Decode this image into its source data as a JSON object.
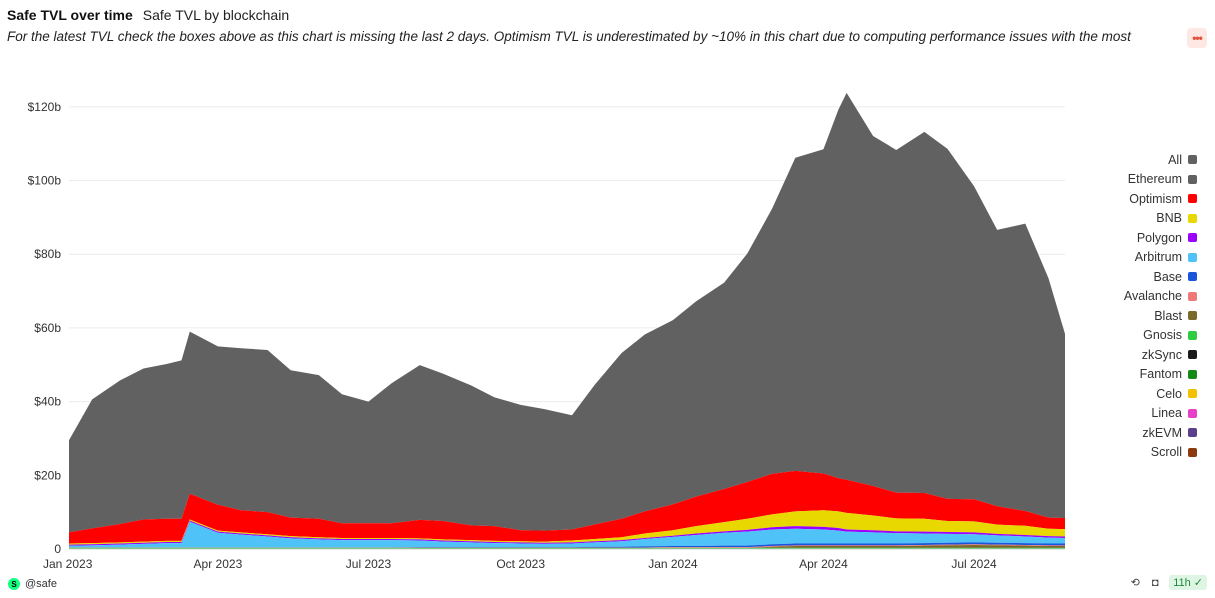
{
  "header": {
    "title": "Safe TVL over time",
    "tab": "Safe TVL by blockchain",
    "description": "For the latest TVL check the boxes above as this chart is missing the last 2 days. Optimism TVL is underestimated by ~10% in this chart due to computing performance issues with the most"
  },
  "footer": {
    "handle": "@safe",
    "age": "11h"
  },
  "icons": {
    "more": "more-dots-icon",
    "refresh": "refresh-icon",
    "camera": "camera-icon",
    "check": "check-circle-icon"
  },
  "chart_data": {
    "type": "area",
    "title": "",
    "xlabel": "",
    "ylabel": "",
    "ylim": [
      0,
      130
    ],
    "y_unit": "billions USD",
    "xlim": [
      "2023-01-01",
      "2024-08-25"
    ],
    "y_ticks": [
      "0",
      "$20b",
      "$40b",
      "$60b",
      "$80b",
      "$100b",
      "$120b"
    ],
    "x_ticks": [
      "Jan 2023",
      "Apr 2023",
      "Jul 2023",
      "Oct 2023",
      "Jan 2024",
      "Apr 2024",
      "Jul 2024"
    ],
    "grid": true,
    "legend_position": "right",
    "legend": [
      {
        "name": "All",
        "color": "#616161"
      },
      {
        "name": "Ethereum",
        "color": "#616161"
      },
      {
        "name": "Optimism",
        "color": "#ff0000"
      },
      {
        "name": "BNB",
        "color": "#e8d800"
      },
      {
        "name": "Polygon",
        "color": "#9b00ff"
      },
      {
        "name": "Arbitrum",
        "color": "#4fc3f7"
      },
      {
        "name": "Base",
        "color": "#1a56db"
      },
      {
        "name": "Avalanche",
        "color": "#f07878"
      },
      {
        "name": "Blast",
        "color": "#7a6a2a"
      },
      {
        "name": "Gnosis",
        "color": "#2ecc40"
      },
      {
        "name": "zkSync",
        "color": "#1a1a1a"
      },
      {
        "name": "Fantom",
        "color": "#138a13"
      },
      {
        "name": "Celo",
        "color": "#f2c200"
      },
      {
        "name": "Linea",
        "color": "#e83fc8"
      },
      {
        "name": "zkEVM",
        "color": "#5a3f8c"
      },
      {
        "name": "Scroll",
        "color": "#8b3a0f"
      }
    ],
    "dates": [
      "2023-01-01",
      "2023-01-15",
      "2023-02-01",
      "2023-02-15",
      "2023-03-01",
      "2023-03-10",
      "2023-03-15",
      "2023-04-01",
      "2023-04-15",
      "2023-05-01",
      "2023-05-15",
      "2023-06-01",
      "2023-06-15",
      "2023-07-01",
      "2023-07-15",
      "2023-08-01",
      "2023-08-15",
      "2023-09-01",
      "2023-09-15",
      "2023-10-01",
      "2023-10-15",
      "2023-11-01",
      "2023-11-15",
      "2023-12-01",
      "2023-12-15",
      "2024-01-01",
      "2024-01-15",
      "2024-02-01",
      "2024-02-15",
      "2024-03-01",
      "2024-03-15",
      "2024-04-01",
      "2024-04-10",
      "2024-04-15",
      "2024-05-01",
      "2024-05-15",
      "2024-06-01",
      "2024-06-15",
      "2024-07-01",
      "2024-07-15",
      "2024-08-01",
      "2024-08-15",
      "2024-08-25"
    ],
    "series": [
      {
        "name": "Ethereum",
        "color": "#616161",
        "values": [
          25,
          35,
          39,
          41,
          42,
          43,
          44,
          43,
          44,
          44,
          40,
          39,
          35,
          33,
          38,
          42,
          40,
          38,
          35,
          34,
          33,
          31,
          38,
          45,
          48,
          50,
          53,
          56,
          62,
          72,
          85,
          88,
          100,
          105,
          95,
          93,
          98,
          95,
          85,
          75,
          78,
          65,
          50
        ]
      },
      {
        "name": "Optimism",
        "color": "#ff0000",
        "values": [
          3,
          4,
          5,
          6,
          6,
          6,
          7,
          7,
          6,
          6,
          5,
          5,
          4,
          4,
          4,
          5,
          5,
          4,
          4,
          3,
          3,
          3,
          4,
          5,
          6,
          7,
          8,
          9,
          10,
          11,
          11,
          10,
          9,
          9,
          8,
          7,
          7,
          6,
          6,
          5,
          4,
          3,
          3
        ]
      },
      {
        "name": "BNB",
        "color": "#e8d800",
        "values": [
          0.3,
          0.3,
          0.3,
          0.3,
          0.3,
          0.3,
          0.3,
          0.3,
          0.3,
          0.3,
          0.3,
          0.3,
          0.3,
          0.3,
          0.3,
          0.3,
          0.3,
          0.3,
          0.3,
          0.3,
          0.3,
          0.5,
          0.6,
          0.8,
          1.2,
          1.5,
          2,
          2.5,
          3,
          3.5,
          4,
          4.5,
          4.5,
          4.5,
          4,
          3.5,
          3.5,
          3,
          3,
          2.5,
          2.5,
          2,
          2
        ]
      },
      {
        "name": "Polygon",
        "color": "#9b00ff",
        "values": [
          0.3,
          0.3,
          0.3,
          0.3,
          0.3,
          0.3,
          0.3,
          0.3,
          0.3,
          0.3,
          0.3,
          0.3,
          0.3,
          0.3,
          0.3,
          0.3,
          0.3,
          0.3,
          0.3,
          0.3,
          0.3,
          0.3,
          0.3,
          0.3,
          0.3,
          0.3,
          0.4,
          0.4,
          0.5,
          0.6,
          0.7,
          0.7,
          0.7,
          0.6,
          0.6,
          0.5,
          0.5,
          0.5,
          0.5,
          0.4,
          0.4,
          0.4,
          0.4
        ]
      },
      {
        "name": "Arbitrum",
        "color": "#4fc3f7",
        "values": [
          0.5,
          0.6,
          0.8,
          1,
          1.2,
          1.2,
          7,
          4,
          3.5,
          3,
          2.5,
          2.2,
          2,
          2,
          2,
          1.8,
          1.5,
          1.3,
          1.1,
          1,
          0.9,
          1,
          1.2,
          1.5,
          2,
          2.5,
          3,
          3.5,
          3.8,
          4,
          4,
          3.8,
          3.5,
          3.2,
          3,
          2.8,
          2.6,
          2.4,
          2.2,
          2,
          1.8,
          1.6,
          1.5
        ]
      },
      {
        "name": "Base",
        "color": "#1a56db",
        "values": [
          0,
          0,
          0,
          0,
          0,
          0,
          0,
          0,
          0,
          0,
          0,
          0,
          0,
          0,
          0,
          0.1,
          0.1,
          0.1,
          0.1,
          0.1,
          0.1,
          0.1,
          0.2,
          0.2,
          0.3,
          0.3,
          0.3,
          0.4,
          0.4,
          0.5,
          0.5,
          0.5,
          0.5,
          0.5,
          0.5,
          0.5,
          0.5,
          0.5,
          0.5,
          0.5,
          0.5,
          0.5,
          0.5
        ]
      },
      {
        "name": "Avalanche",
        "color": "#f07878",
        "values": [
          0.1,
          0.1,
          0.1,
          0.1,
          0.1,
          0.1,
          0.1,
          0.1,
          0.1,
          0.1,
          0.1,
          0.1,
          0.1,
          0.1,
          0.1,
          0.1,
          0.1,
          0.1,
          0.1,
          0.1,
          0.1,
          0.1,
          0.1,
          0.1,
          0.1,
          0.2,
          0.2,
          0.2,
          0.2,
          0.2,
          0.2,
          0.2,
          0.2,
          0.2,
          0.2,
          0.2,
          0.2,
          0.2,
          0.2,
          0.2,
          0.2,
          0.2,
          0.2
        ]
      },
      {
        "name": "Blast",
        "color": "#7a6a2a",
        "values": [
          0,
          0,
          0,
          0,
          0,
          0,
          0,
          0,
          0,
          0,
          0,
          0,
          0,
          0,
          0,
          0,
          0,
          0,
          0,
          0,
          0,
          0,
          0,
          0,
          0,
          0,
          0,
          0,
          0,
          0.3,
          0.5,
          0.5,
          0.5,
          0.5,
          0.5,
          0.5,
          0.6,
          0.7,
          0.8,
          0.7,
          0.6,
          0.5,
          0.5
        ]
      },
      {
        "name": "Gnosis",
        "color": "#2ecc40",
        "values": [
          0.2,
          0.2,
          0.2,
          0.2,
          0.2,
          0.2,
          0.2,
          0.2,
          0.2,
          0.2,
          0.2,
          0.2,
          0.2,
          0.2,
          0.2,
          0.2,
          0.2,
          0.2,
          0.2,
          0.2,
          0.2,
          0.2,
          0.2,
          0.2,
          0.2,
          0.2,
          0.2,
          0.2,
          0.2,
          0.2,
          0.2,
          0.2,
          0.2,
          0.2,
          0.2,
          0.2,
          0.2,
          0.2,
          0.2,
          0.2,
          0.2,
          0.2,
          0.2
        ]
      },
      {
        "name": "zkSync",
        "color": "#1a1a1a",
        "values": [
          0.1,
          0.1,
          0.1,
          0.1,
          0.1,
          0.1,
          0.1,
          0.1,
          0.1,
          0.1,
          0.1,
          0.1,
          0.1,
          0.1,
          0.1,
          0.1,
          0.1,
          0.1,
          0.1,
          0.1,
          0.1,
          0.1,
          0.1,
          0.1,
          0.1,
          0.1,
          0.1,
          0.1,
          0.1,
          0.1,
          0.1,
          0.1,
          0.1,
          0.1,
          0.1,
          0.1,
          0.1,
          0.1,
          0.1,
          0.1,
          0.1,
          0.1,
          0.1
        ]
      }
    ]
  }
}
